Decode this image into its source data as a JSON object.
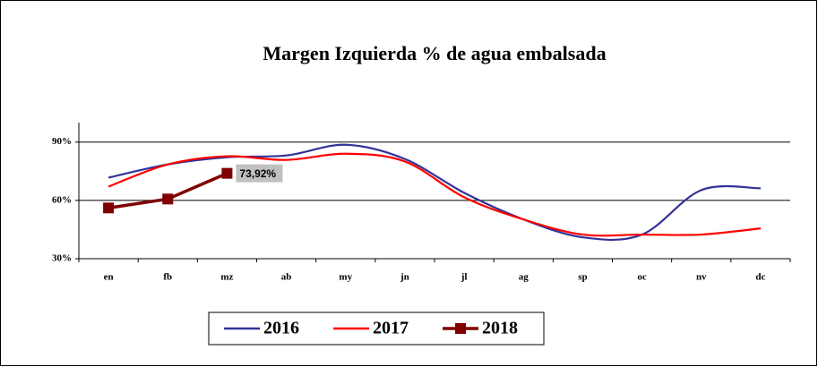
{
  "chart_data": {
    "type": "line",
    "title": "Margen Izquierda % de agua embalsada",
    "categories": [
      "en",
      "fb",
      "mz",
      "ab",
      "my",
      "jn",
      "jl",
      "ag",
      "sp",
      "oc",
      "nv",
      "dc"
    ],
    "series": [
      {
        "name": "2016",
        "color": "#333399",
        "values": [
          71.7,
          78.5,
          82.2,
          83.1,
          88.6,
          81.3,
          63.9,
          50.2,
          41,
          42.4,
          65.3,
          66.2
        ]
      },
      {
        "name": "2017",
        "color": "#ff0000",
        "values": [
          67.1,
          78.5,
          82.7,
          80.8,
          84,
          80,
          61.6,
          50.2,
          42.4,
          42.4,
          42.4,
          45.6
        ]
      },
      {
        "name": "2018",
        "color": "#800000",
        "values": [
          56.1,
          60.7,
          73.92,
          null,
          null,
          null,
          null,
          null,
          null,
          null,
          null,
          null
        ],
        "value_labels": [
          null,
          null,
          "73,92%",
          null,
          null,
          null,
          null,
          null,
          null,
          null,
          null,
          null
        ]
      }
    ],
    "ylim": [
      30,
      100
    ],
    "yticks": [
      {
        "value": 30,
        "label": "30%"
      },
      {
        "value": 60,
        "label": "60%"
      },
      {
        "value": 90,
        "label": "90%"
      }
    ],
    "grid": true,
    "legend": "bottom"
  }
}
